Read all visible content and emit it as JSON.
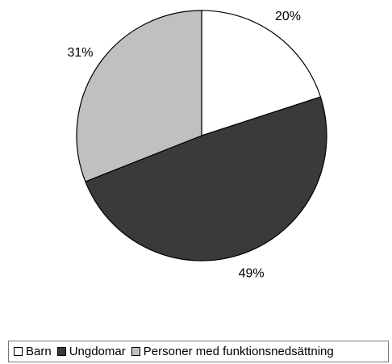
{
  "chart_data": {
    "type": "pie",
    "categories": [
      "Barn",
      "Ungdomar",
      "Personer med funktionsnedsättning"
    ],
    "values": [
      20,
      49,
      31
    ],
    "value_labels": [
      "20%",
      "49%",
      "31%"
    ],
    "colors": [
      "#ffffff",
      "#3a3a3a",
      "#c0c0c0"
    ],
    "legend": "bottom"
  }
}
